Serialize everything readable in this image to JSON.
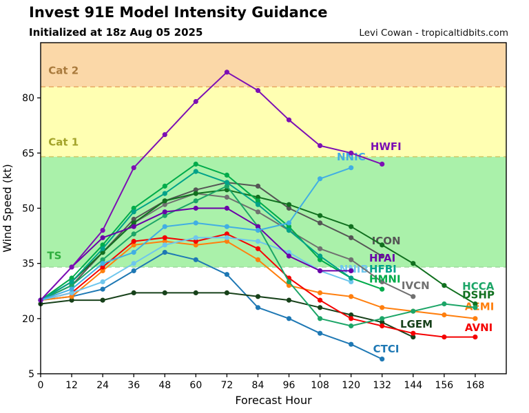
{
  "header": {
    "title": "Invest 91E Model Intensity Guidance",
    "subtitle": "Initialized at 18z Aug 05 2025",
    "attribution": "Levi Cowan - tropicaltidbits.com"
  },
  "chart_data": {
    "type": "line",
    "title": "Invest 91E Model Intensity Guidance",
    "xlabel": "Forecast Hour",
    "ylabel": "Wind Speed (kt)",
    "xlim": [
      0,
      180
    ],
    "ylim": [
      5,
      95
    ],
    "xticks": [
      0,
      12,
      24,
      36,
      48,
      60,
      72,
      84,
      96,
      108,
      120,
      132,
      144,
      156,
      168
    ],
    "yticks": [
      5,
      20,
      35,
      50,
      65,
      80
    ],
    "grid": false,
    "legend_position": "inline-labels",
    "bands": [
      {
        "name": "tropical-storm",
        "from": 34,
        "to": 64,
        "color": "#aaf1aa"
      },
      {
        "name": "cat-1",
        "from": 64,
        "to": 83,
        "color": "#ffffb2"
      },
      {
        "name": "cat-2",
        "from": 83,
        "to": 95,
        "color": "#fbd8a8"
      }
    ],
    "thresholds": [
      {
        "label": "TS",
        "value": 34,
        "line_color": "#9fd99f",
        "text_color": "#2fae3e",
        "label_x": 2.5,
        "label_y": 36.2
      },
      {
        "label": "Cat 1",
        "value": 64,
        "line_color": "#d2cc6a",
        "text_color": "#a3a32a",
        "label_x": 3.0,
        "label_y": 67.0
      },
      {
        "label": "Cat 2",
        "value": 83,
        "line_color": "#e7a963",
        "text_color": "#a97a3c",
        "label_x": 3.0,
        "label_y": 86.5
      }
    ],
    "series": [
      {
        "name": "CTCI",
        "color": "#1e78b4",
        "label_x": 128.5,
        "label_y": 10.8,
        "points": [
          [
            0,
            25
          ],
          [
            12,
            26
          ],
          [
            24,
            28
          ],
          [
            36,
            33
          ],
          [
            48,
            38
          ],
          [
            60,
            36
          ],
          [
            72,
            32
          ],
          [
            84,
            23
          ],
          [
            96,
            20
          ],
          [
            108,
            16
          ],
          [
            120,
            13
          ],
          [
            132,
            9
          ]
        ]
      },
      {
        "name": "LGEM",
        "color": "#17411a",
        "label_x": 139.0,
        "label_y": 17.5,
        "points": [
          [
            0,
            24
          ],
          [
            12,
            25
          ],
          [
            24,
            25
          ],
          [
            36,
            27
          ],
          [
            48,
            27
          ],
          [
            60,
            27
          ],
          [
            72,
            27
          ],
          [
            84,
            26
          ],
          [
            96,
            25
          ],
          [
            108,
            23
          ],
          [
            120,
            21
          ],
          [
            132,
            19
          ],
          [
            144,
            15
          ]
        ]
      },
      {
        "name": "AEMI",
        "color": "#ff7f0e",
        "label_x": 164.0,
        "label_y": 22.3,
        "points": [
          [
            0,
            25
          ],
          [
            12,
            26
          ],
          [
            24,
            33
          ],
          [
            36,
            40
          ],
          [
            48,
            41
          ],
          [
            60,
            40
          ],
          [
            72,
            41
          ],
          [
            84,
            36
          ],
          [
            96,
            29
          ],
          [
            108,
            27
          ],
          [
            120,
            26
          ],
          [
            132,
            23
          ],
          [
            144,
            22
          ],
          [
            156,
            21
          ],
          [
            168,
            20
          ]
        ]
      },
      {
        "name": "AVNI",
        "color": "#f40000",
        "label_x": 164.0,
        "label_y": 16.6,
        "points": [
          [
            0,
            25
          ],
          [
            12,
            27
          ],
          [
            24,
            34
          ],
          [
            36,
            41
          ],
          [
            48,
            42
          ],
          [
            60,
            41
          ],
          [
            72,
            43
          ],
          [
            84,
            39
          ],
          [
            96,
            31
          ],
          [
            108,
            25
          ],
          [
            120,
            20
          ],
          [
            132,
            18
          ],
          [
            144,
            16
          ],
          [
            156,
            15
          ],
          [
            168,
            15
          ]
        ]
      },
      {
        "name": "NNIB",
        "color": "#6ec6ed",
        "label_x": 115.5,
        "label_y": 32.5,
        "points": [
          [
            0,
            25
          ],
          [
            12,
            27
          ],
          [
            24,
            30
          ],
          [
            36,
            35
          ],
          [
            48,
            40
          ],
          [
            60,
            42
          ],
          [
            72,
            42
          ],
          [
            84,
            41
          ],
          [
            96,
            38
          ],
          [
            108,
            33
          ],
          [
            120,
            30
          ]
        ]
      },
      {
        "name": "IVCN",
        "color": "#707070",
        "label_x": 139.5,
        "label_y": 28.0,
        "points": [
          [
            0,
            25
          ],
          [
            12,
            30
          ],
          [
            24,
            38
          ],
          [
            36,
            46
          ],
          [
            48,
            51
          ],
          [
            60,
            54
          ],
          [
            72,
            53
          ],
          [
            84,
            49
          ],
          [
            96,
            44
          ],
          [
            108,
            39
          ],
          [
            120,
            36
          ],
          [
            132,
            30
          ],
          [
            144,
            26
          ]
        ]
      },
      {
        "name": "ICON",
        "color": "#555555",
        "label_x": 128.0,
        "label_y": 40.2,
        "points": [
          [
            0,
            25
          ],
          [
            12,
            29
          ],
          [
            24,
            38
          ],
          [
            36,
            47
          ],
          [
            48,
            52
          ],
          [
            60,
            55
          ],
          [
            72,
            57
          ],
          [
            84,
            56
          ],
          [
            96,
            50
          ],
          [
            108,
            46
          ],
          [
            120,
            42
          ],
          [
            132,
            37
          ]
        ]
      },
      {
        "name": "DSHP",
        "color": "#11701f",
        "label_x": 163.0,
        "label_y": 25.5,
        "points": [
          [
            0,
            25
          ],
          [
            12,
            30
          ],
          [
            24,
            38
          ],
          [
            36,
            46
          ],
          [
            48,
            52
          ],
          [
            60,
            54
          ],
          [
            72,
            55
          ],
          [
            84,
            53
          ],
          [
            96,
            51
          ],
          [
            108,
            48
          ],
          [
            120,
            45
          ],
          [
            132,
            40
          ],
          [
            144,
            35
          ],
          [
            156,
            29
          ],
          [
            168,
            24
          ]
        ]
      },
      {
        "name": "HCCA",
        "color": "#1ca567",
        "label_x": 163.0,
        "label_y": 27.8,
        "points": [
          [
            0,
            25
          ],
          [
            12,
            29
          ],
          [
            24,
            36
          ],
          [
            36,
            43
          ],
          [
            48,
            48
          ],
          [
            60,
            52
          ],
          [
            72,
            56
          ],
          [
            84,
            45
          ],
          [
            96,
            30
          ],
          [
            108,
            20
          ],
          [
            120,
            18
          ],
          [
            132,
            20
          ],
          [
            144,
            22
          ],
          [
            156,
            24
          ],
          [
            168,
            23
          ]
        ]
      },
      {
        "name": "HMNI",
        "color": "#00ab4a",
        "label_x": 127.0,
        "label_y": 29.8,
        "points": [
          [
            0,
            25
          ],
          [
            12,
            31
          ],
          [
            24,
            40
          ],
          [
            36,
            50
          ],
          [
            48,
            56
          ],
          [
            60,
            62
          ],
          [
            72,
            59
          ],
          [
            84,
            52
          ],
          [
            96,
            45
          ],
          [
            108,
            36
          ],
          [
            120,
            31
          ],
          [
            132,
            28
          ]
        ]
      },
      {
        "name": "HFBI",
        "color": "#00a289",
        "label_x": 127.0,
        "label_y": 32.5,
        "points": [
          [
            0,
            25
          ],
          [
            12,
            30
          ],
          [
            24,
            39
          ],
          [
            36,
            49
          ],
          [
            48,
            54
          ],
          [
            60,
            60
          ],
          [
            72,
            57
          ],
          [
            84,
            51
          ],
          [
            96,
            44
          ],
          [
            108,
            37
          ],
          [
            120,
            31
          ]
        ]
      },
      {
        "name": "HFAI",
        "color": "#6a00a8",
        "label_x": 127.0,
        "label_y": 35.5,
        "points": [
          [
            0,
            25
          ],
          [
            12,
            34
          ],
          [
            24,
            42
          ],
          [
            36,
            45
          ],
          [
            48,
            49
          ],
          [
            60,
            50
          ],
          [
            72,
            50
          ],
          [
            84,
            45
          ],
          [
            96,
            37
          ],
          [
            108,
            33
          ],
          [
            120,
            33
          ]
        ]
      },
      {
        "name": "NNIC",
        "color": "#41aee3",
        "label_x": 114.5,
        "label_y": 63.0,
        "points": [
          [
            0,
            25
          ],
          [
            12,
            28
          ],
          [
            24,
            35
          ],
          [
            36,
            38
          ],
          [
            48,
            45
          ],
          [
            60,
            46
          ],
          [
            72,
            45
          ],
          [
            84,
            44
          ],
          [
            96,
            46
          ],
          [
            108,
            58
          ],
          [
            120,
            61
          ]
        ]
      },
      {
        "name": "HWFI",
        "color": "#7d0fb4",
        "label_x": 127.5,
        "label_y": 65.8,
        "points": [
          [
            0,
            25
          ],
          [
            12,
            34
          ],
          [
            24,
            44
          ],
          [
            36,
            61
          ],
          [
            48,
            70
          ],
          [
            60,
            79
          ],
          [
            72,
            87
          ],
          [
            84,
            82
          ],
          [
            96,
            74
          ],
          [
            108,
            67
          ],
          [
            120,
            65
          ],
          [
            132,
            62
          ]
        ]
      }
    ]
  }
}
